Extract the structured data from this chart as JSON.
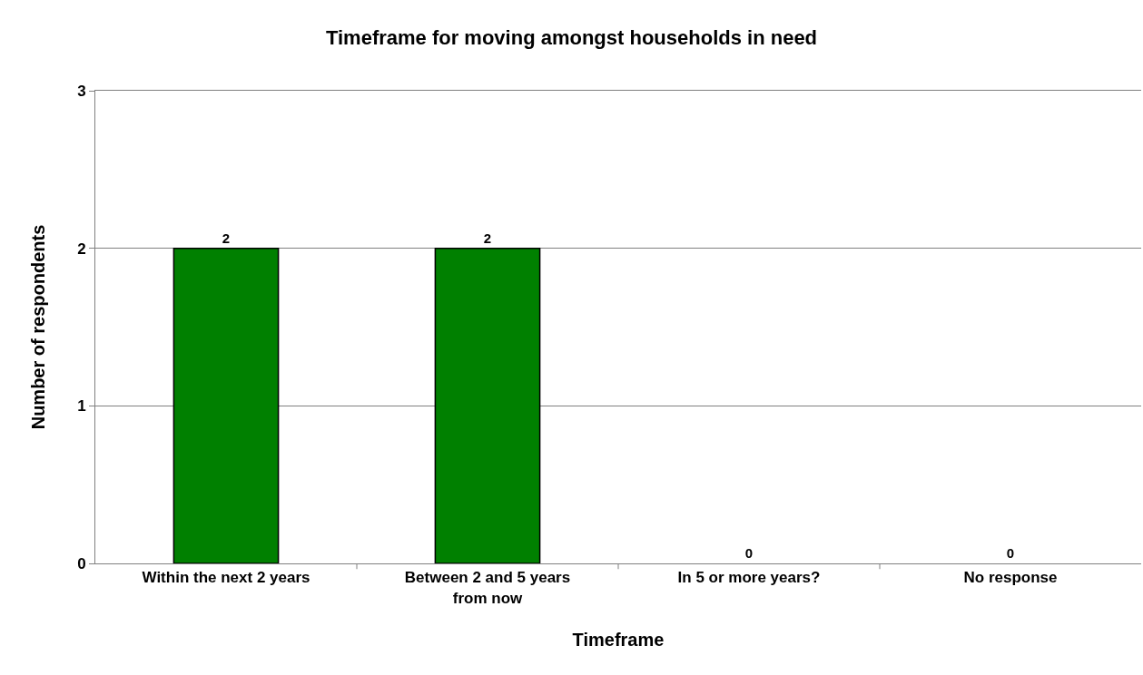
{
  "chart_data": {
    "type": "bar",
    "title": "Timeframe for moving amongst households in need",
    "xlabel": "Timeframe",
    "ylabel": "Number of respondents",
    "categories": [
      "Within the next 2 years",
      "Between 2 and 5 years from now",
      "In 5 or more years?",
      "No response"
    ],
    "values": [
      2,
      2,
      0,
      0
    ],
    "color": "#008000",
    "ylim": [
      0,
      3
    ],
    "yticks": [
      0,
      1,
      2,
      3
    ],
    "grid": "y",
    "data_labels": true
  }
}
